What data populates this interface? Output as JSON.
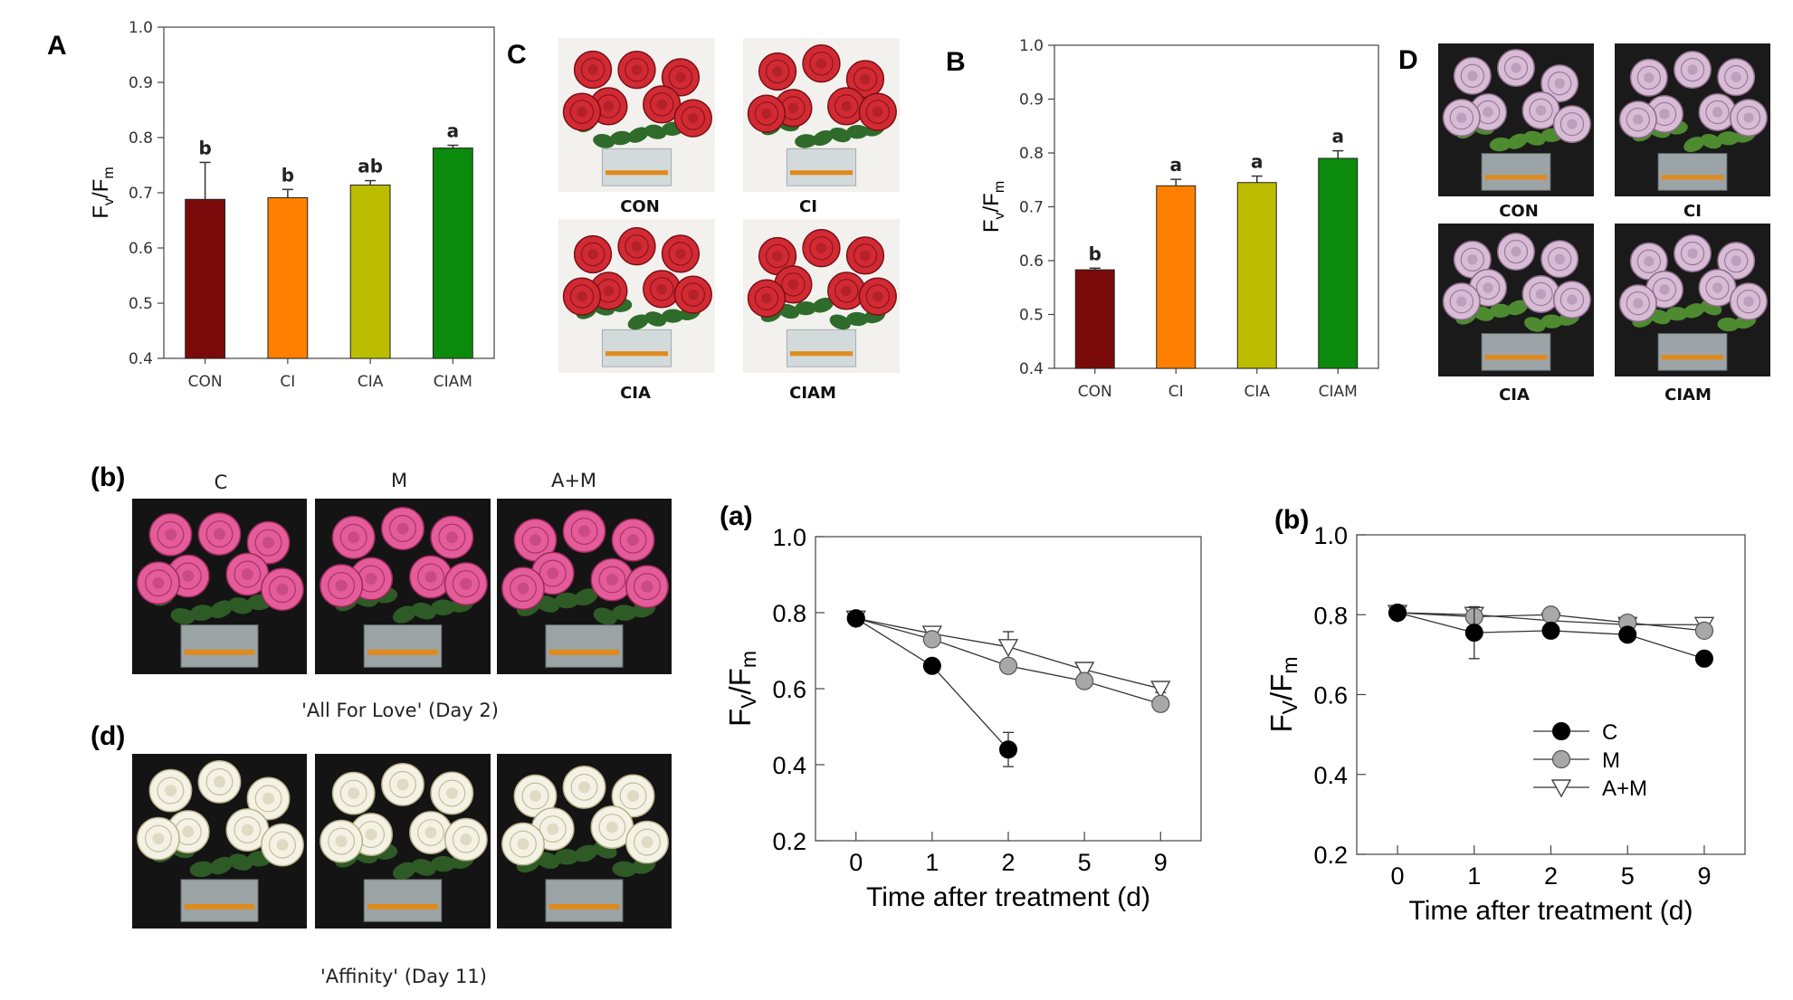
{
  "colors": {
    "con": "#7a0a0a",
    "ci": "#ff8000",
    "cia": "#bdbd00",
    "ciam": "#0b8a0b",
    "red_rose": "#d22a33",
    "lilac_rose": "#d8bcd6",
    "pink_rose": "#e45c9a",
    "white_rose": "#f4f2e4",
    "gray_marker": "#a8a8a8"
  },
  "panels": {
    "A_letter": "A",
    "B_letter": "B",
    "C_letter": "C",
    "D_letter": "D",
    "b_photo_letter": "(b)",
    "d_photo_letter": "(d)",
    "a_line_letter": "(a)",
    "b_line_letter": "(b)"
  },
  "photo_C": {
    "labels": [
      "CON",
      "CI",
      "CIA",
      "CIAM"
    ],
    "icon": "red-rose-bouquet-photo"
  },
  "photo_D": {
    "labels": [
      "CON",
      "CI",
      "CIA",
      "CIAM"
    ],
    "icon": "lilac-rose-bouquet-photo"
  },
  "photo_b": {
    "headers": [
      "C",
      "M",
      "A+M"
    ],
    "caption": "'All For Love' (Day 2)",
    "icon": "pink-rose-bouquet-photo"
  },
  "photo_d": {
    "caption": "'Affinity' (Day 11)",
    "icon": "white-rose-bouquet-photo"
  },
  "chart_data": [
    {
      "id": "A",
      "type": "bar",
      "categories": [
        "CON",
        "CI",
        "CIA",
        "CIAM"
      ],
      "values": [
        0.688,
        0.691,
        0.714,
        0.781
      ],
      "errors": [
        0.067,
        0.015,
        0.008,
        0.005
      ],
      "significance": [
        "b",
        "b",
        "ab",
        "a"
      ],
      "ylabel_main": "F",
      "ylabel_sub1": "v",
      "ylabel_mid": "/F",
      "ylabel_sub2": "m",
      "ylim": [
        0.4,
        1.0
      ],
      "yticks": [
        "0.4",
        "0.5",
        "0.6",
        "0.7",
        "0.8",
        "0.9",
        "1.0"
      ]
    },
    {
      "id": "B",
      "type": "bar",
      "categories": [
        "CON",
        "CI",
        "CIA",
        "CIAM"
      ],
      "values": [
        0.583,
        0.739,
        0.745,
        0.79
      ],
      "errors": [
        0.003,
        0.012,
        0.012,
        0.014
      ],
      "significance": [
        "b",
        "a",
        "a",
        "a"
      ],
      "ylabel_main": "F",
      "ylabel_sub1": "v",
      "ylabel_mid": "/F",
      "ylabel_sub2": "m",
      "ylim": [
        0.4,
        1.0
      ],
      "yticks": [
        "0.4",
        "0.5",
        "0.6",
        "0.7",
        "0.8",
        "0.9",
        "1.0"
      ]
    },
    {
      "id": "a",
      "type": "line",
      "x": [
        "0",
        "1",
        "2",
        "5",
        "9"
      ],
      "xlabel": "Time after treatment (d)",
      "ylabel_main": "F",
      "ylabel_sub1": "V",
      "ylabel_mid": "/F",
      "ylabel_sub2": "m",
      "ylim": [
        0.2,
        1.0
      ],
      "yticks": [
        "0.2",
        "0.4",
        "0.6",
        "0.8",
        "1.0"
      ],
      "series": [
        {
          "name": "C",
          "marker": "filled-circle",
          "values": [
            0.785,
            0.66,
            0.44,
            null,
            null
          ],
          "errors": [
            0.005,
            0.01,
            0.045,
            null,
            null
          ]
        },
        {
          "name": "M",
          "marker": "gray-circle",
          "values": [
            0.785,
            0.73,
            0.66,
            0.62,
            0.56
          ],
          "errors": [
            0.005,
            0.01,
            0.015,
            0.01,
            0.01
          ]
        },
        {
          "name": "A+M",
          "marker": "open-triangle",
          "values": [
            0.785,
            0.745,
            0.71,
            0.65,
            0.6
          ],
          "errors": [
            0.005,
            0.01,
            0.04,
            0.01,
            0.01
          ]
        }
      ]
    },
    {
      "id": "b",
      "type": "line",
      "x": [
        "0",
        "1",
        "2",
        "5",
        "9"
      ],
      "xlabel": "Time after treatment (d)",
      "ylabel_main": "F",
      "ylabel_sub1": "V",
      "ylabel_mid": "/F",
      "ylabel_sub2": "m",
      "ylim": [
        0.2,
        1.0
      ],
      "yticks": [
        "0.2",
        "0.4",
        "0.6",
        "0.8",
        "1.0"
      ],
      "legend": "bottom-right",
      "series": [
        {
          "name": "C",
          "marker": "filled-circle",
          "values": [
            0.805,
            0.755,
            0.76,
            0.75,
            0.69
          ],
          "errors": [
            0.005,
            0.065,
            0.01,
            0.01,
            0.01
          ]
        },
        {
          "name": "M",
          "marker": "gray-circle",
          "values": [
            0.805,
            0.795,
            0.8,
            0.78,
            0.76
          ],
          "errors": [
            0.005,
            0.01,
            0.01,
            0.01,
            0.01
          ]
        },
        {
          "name": "A+M",
          "marker": "open-triangle",
          "values": [
            0.805,
            0.8,
            0.785,
            0.775,
            0.775
          ],
          "errors": [
            0.005,
            0.01,
            0.01,
            0.01,
            0.01
          ]
        }
      ]
    }
  ]
}
